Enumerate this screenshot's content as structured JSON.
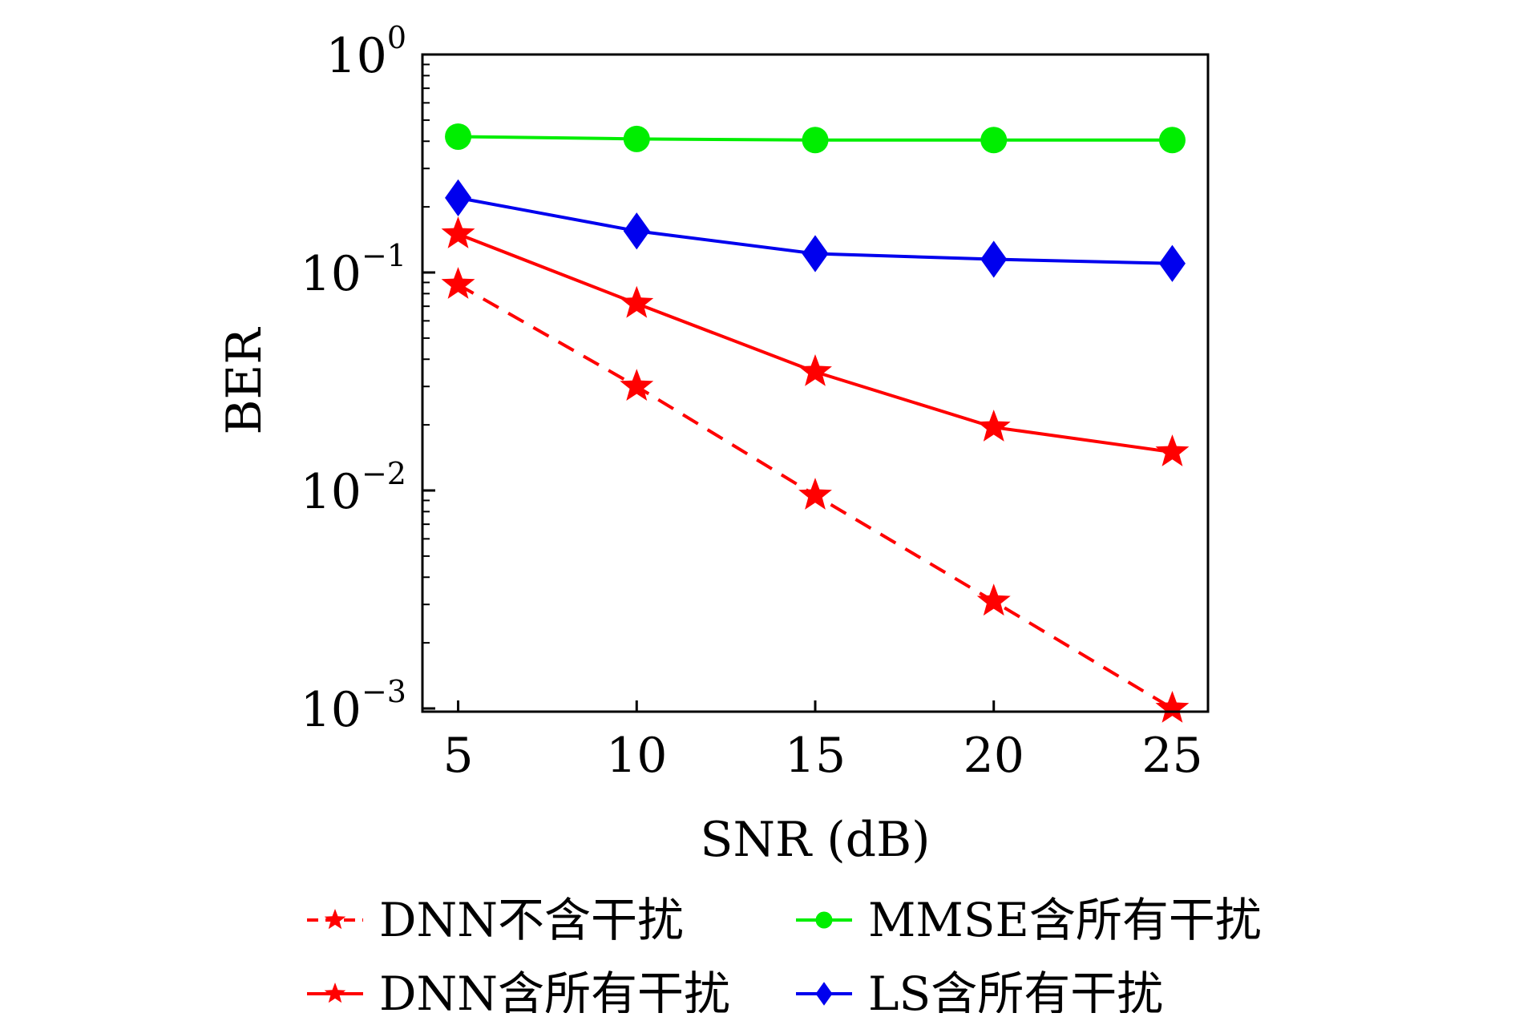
{
  "chart_data": {
    "type": "line",
    "xlabel": "SNR (dB)",
    "ylabel": "BER",
    "x": [
      5,
      10,
      15,
      20,
      25
    ],
    "xticks": [
      "5",
      "10",
      "15",
      "20",
      "25"
    ],
    "xlim": [
      4,
      26
    ],
    "ylim": [
      0.001,
      1
    ],
    "yscale": "log",
    "yticks": [
      {
        "base": "10",
        "exp": "0"
      },
      {
        "base": "10",
        "exp": "−1"
      },
      {
        "base": "10",
        "exp": "−2"
      },
      {
        "base": "10",
        "exp": "−3"
      }
    ],
    "grid": false,
    "legend_position": "bottom",
    "series": [
      {
        "name": "DNN不含干扰",
        "color": "#ff0000",
        "marker": "star",
        "line": "dashed",
        "values": [
          0.088,
          0.03,
          0.0095,
          0.0031,
          0.001
        ]
      },
      {
        "name": "MMSE含所有干扰",
        "color": "#00ee00",
        "marker": "circle",
        "line": "solid",
        "values": [
          0.42,
          0.41,
          0.405,
          0.405,
          0.405
        ]
      },
      {
        "name": "DNN含所有干扰",
        "color": "#ff0000",
        "marker": "star",
        "line": "solid",
        "values": [
          0.15,
          0.072,
          0.035,
          0.0195,
          0.015
        ]
      },
      {
        "name": "LS含所有干扰",
        "color": "#0000ee",
        "marker": "diamond",
        "line": "solid",
        "values": [
          0.22,
          0.155,
          0.122,
          0.115,
          0.11
        ]
      }
    ]
  }
}
